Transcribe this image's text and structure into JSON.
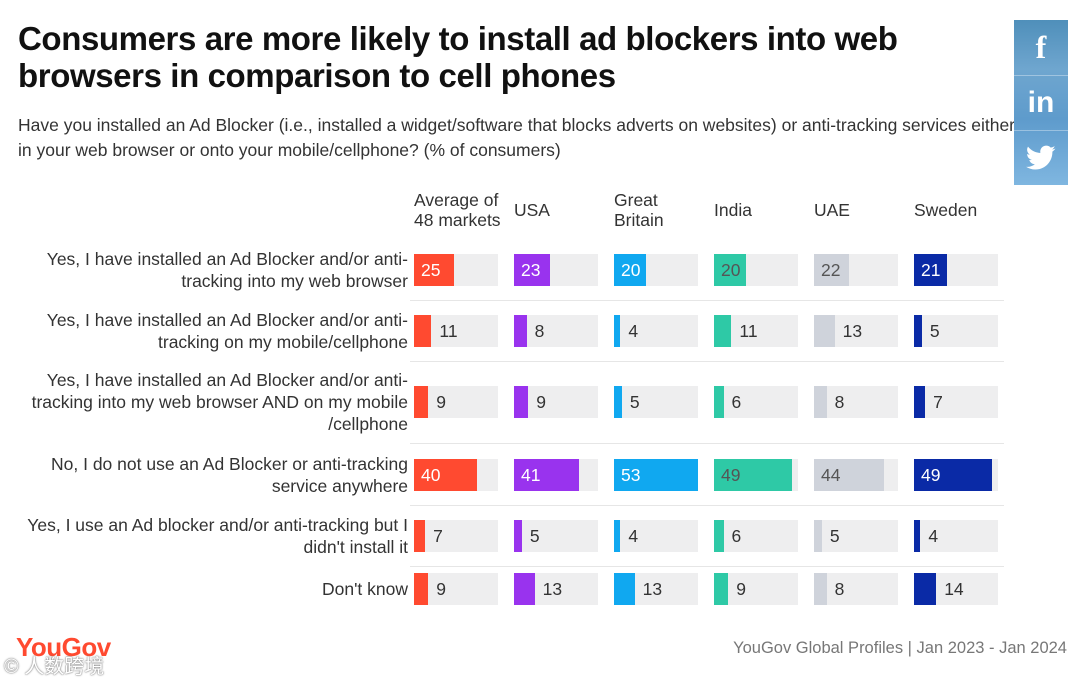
{
  "title": "Consumers are more likely to install ad blockers into web browsers in comparison to cell phones",
  "subtitle": "Have you installed an Ad Blocker (i.e., installed a widget/software that blocks adverts on websites) or anti-tracking services either in your web browser or onto your mobile/cellphone? (% of consumers)",
  "social": {
    "facebook": "f",
    "linkedin": "in",
    "twitter": "twitter-bird"
  },
  "chart_data": {
    "type": "bar",
    "unit": "% of consumers",
    "scale_max": 53,
    "series": [
      {
        "name": "Average of 48 markets",
        "color": "#ff4a30",
        "values": [
          25,
          11,
          9,
          40,
          7,
          9
        ]
      },
      {
        "name": "USA",
        "color": "#9933ee",
        "values": [
          23,
          8,
          9,
          41,
          5,
          13
        ]
      },
      {
        "name": "Great Britain",
        "color": "#10a8f0",
        "values": [
          20,
          4,
          5,
          53,
          4,
          13
        ]
      },
      {
        "name": "India",
        "color": "#2ec9a6",
        "values": [
          20,
          11,
          6,
          49,
          6,
          9
        ]
      },
      {
        "name": "UAE",
        "color": "#cfd3db",
        "values": [
          22,
          13,
          8,
          44,
          5,
          8
        ]
      },
      {
        "name": "Sweden",
        "color": "#0a2aa6",
        "values": [
          21,
          5,
          7,
          49,
          4,
          14
        ]
      }
    ],
    "categories": [
      "Yes, I have installed an Ad Blocker and/or anti-tracking into my web browser",
      "Yes, I have installed an Ad Blocker and/or anti-tracking on my mobile/cellphone",
      "Yes, I have installed an Ad Blocker and/or anti-tracking into my web browser AND on my mobile /cellphone",
      "No, I do not use an Ad Blocker or anti-tracking service anywhere",
      "Yes, I use an Ad blocker and/or anti-tracking but I didn't install it",
      "Don't know"
    ]
  },
  "footer": {
    "logo": "YouGov",
    "source": "YouGov Global Profiles | Jan 2023 - Jan 2024",
    "watermark": "©  人数跨境"
  }
}
